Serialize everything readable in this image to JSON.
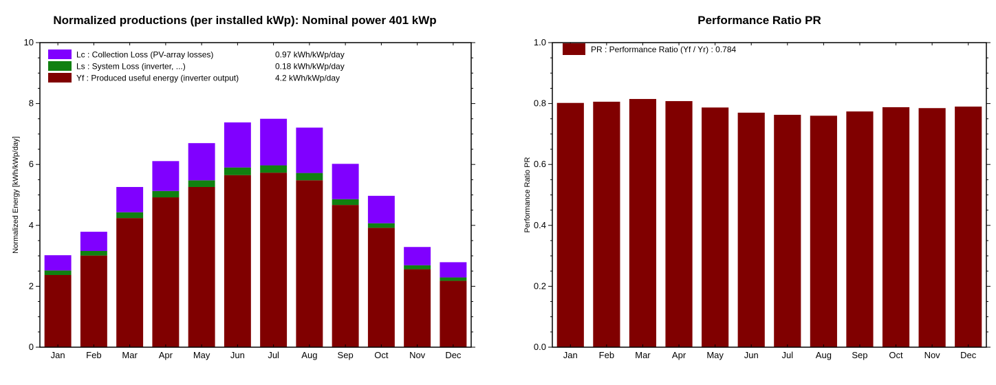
{
  "chart_data": [
    {
      "type": "bar",
      "stacked": true,
      "title": "Normalized productions (per installed kWp):  Nominal power 401 kWp",
      "xlabel": "",
      "ylabel": "Normalized Energy [kWh/kWp/day]",
      "ylim": [
        0,
        10
      ],
      "yticks": [
        "0",
        "2",
        "4",
        "6",
        "8",
        "10"
      ],
      "categories": [
        "Jan",
        "Feb",
        "Mar",
        "Apr",
        "May",
        "Jun",
        "Jul",
        "Aug",
        "Sep",
        "Oct",
        "Nov",
        "Dec"
      ],
      "legend_position": "top-left",
      "grid": false,
      "series": [
        {
          "key": "Yf",
          "name": "Yf : Produced useful energy  (inverter output)",
          "value_label": "4.2 kWh/kWp/day",
          "color": "#800000",
          "values": [
            2.37,
            3.01,
            4.24,
            4.92,
            5.26,
            5.65,
            5.73,
            5.48,
            4.67,
            3.92,
            2.56,
            2.18
          ]
        },
        {
          "key": "Ls",
          "name": "Ls : System Loss  (inverter, ...)",
          "value_label": "0.18 kWh/kWp/day",
          "color": "#108010",
          "values": [
            0.15,
            0.15,
            0.19,
            0.21,
            0.22,
            0.25,
            0.24,
            0.24,
            0.19,
            0.15,
            0.13,
            0.11
          ]
        },
        {
          "key": "Lc",
          "name": "Lc : Collection Loss (PV-array losses)",
          "value_label": "0.97 kWh/kWp/day",
          "color": "#8000ff",
          "values": [
            0.5,
            0.63,
            0.83,
            0.98,
            1.22,
            1.48,
            1.53,
            1.49,
            1.16,
            0.9,
            0.6,
            0.5
          ]
        }
      ]
    },
    {
      "type": "bar",
      "title": "Performance Ratio PR",
      "xlabel": "",
      "ylabel": "Performance Ratio PR",
      "ylim": [
        0,
        1
      ],
      "yticks": [
        "0.0",
        "0.2",
        "0.4",
        "0.6",
        "0.8",
        "1.0"
      ],
      "categories": [
        "Jan",
        "Feb",
        "Mar",
        "Apr",
        "May",
        "Jun",
        "Jul",
        "Aug",
        "Sep",
        "Oct",
        "Nov",
        "Dec"
      ],
      "legend_position": "top-left",
      "grid": false,
      "series": [
        {
          "key": "PR",
          "name": "PR : Performance Ratio (Yf / Yr) :  0.784",
          "color": "#800000",
          "values": [
            0.802,
            0.806,
            0.815,
            0.808,
            0.787,
            0.77,
            0.763,
            0.76,
            0.774,
            0.788,
            0.785,
            0.79
          ]
        }
      ]
    }
  ]
}
